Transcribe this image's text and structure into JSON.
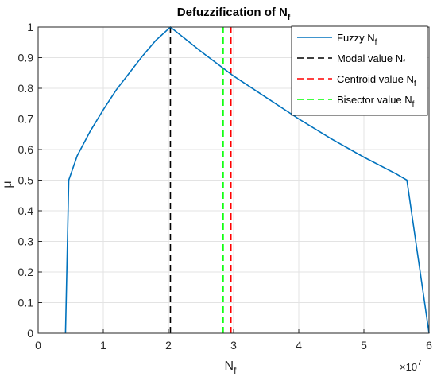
{
  "chart_data": {
    "type": "line",
    "title": {
      "main": "Defuzzification of N",
      "sub": "f"
    },
    "xlabel": {
      "main": "N",
      "sub": "f"
    },
    "ylabel": "μ",
    "x_exponent": {
      "base": "×10",
      "power": "7"
    },
    "xlim": [
      0,
      6
    ],
    "ylim": [
      0,
      1
    ],
    "xticks": [
      0,
      1,
      2,
      3,
      4,
      5,
      6
    ],
    "yticks": [
      0,
      0.1,
      0.2,
      0.3,
      0.4,
      0.5,
      0.6,
      0.7,
      0.8,
      0.9,
      1
    ],
    "xtick_labels": [
      "0",
      "1",
      "2",
      "3",
      "4",
      "5",
      "6"
    ],
    "ytick_labels": [
      "0",
      "0.1",
      "0.2",
      "0.3",
      "0.4",
      "0.5",
      "0.6",
      "0.7",
      "0.8",
      "0.9",
      "1"
    ],
    "grid": true,
    "legend_position": "top-right",
    "series": [
      {
        "name": {
          "main": "Fuzzy N",
          "sub": "f"
        },
        "color": "#0072BD",
        "style": "solid",
        "x": [
          0.42,
          0.47,
          0.6,
          0.8,
          1.0,
          1.2,
          1.4,
          1.6,
          1.8,
          2.03,
          2.5,
          3.0,
          3.5,
          4.0,
          4.5,
          5.0,
          5.5,
          5.66,
          6.0
        ],
        "y": [
          0,
          0.5,
          0.58,
          0.66,
          0.73,
          0.795,
          0.85,
          0.905,
          0.955,
          1.0,
          0.92,
          0.84,
          0.77,
          0.7,
          0.635,
          0.575,
          0.52,
          0.5,
          0
        ]
      },
      {
        "name": {
          "main": "Modal value N",
          "sub": "f"
        },
        "color": "#000000",
        "style": "dashed",
        "x": [
          2.03,
          2.03
        ],
        "y": [
          0,
          1
        ]
      },
      {
        "name": {
          "main": "Centroid value N",
          "sub": "f"
        },
        "color": "#FF0000",
        "style": "dashed",
        "x": [
          2.96,
          2.96
        ],
        "y": [
          0,
          1
        ]
      },
      {
        "name": {
          "main": "Bisector value N",
          "sub": "f"
        },
        "color": "#00FF00",
        "style": "dashed",
        "x": [
          2.84,
          2.84
        ],
        "y": [
          0,
          1
        ]
      }
    ]
  }
}
